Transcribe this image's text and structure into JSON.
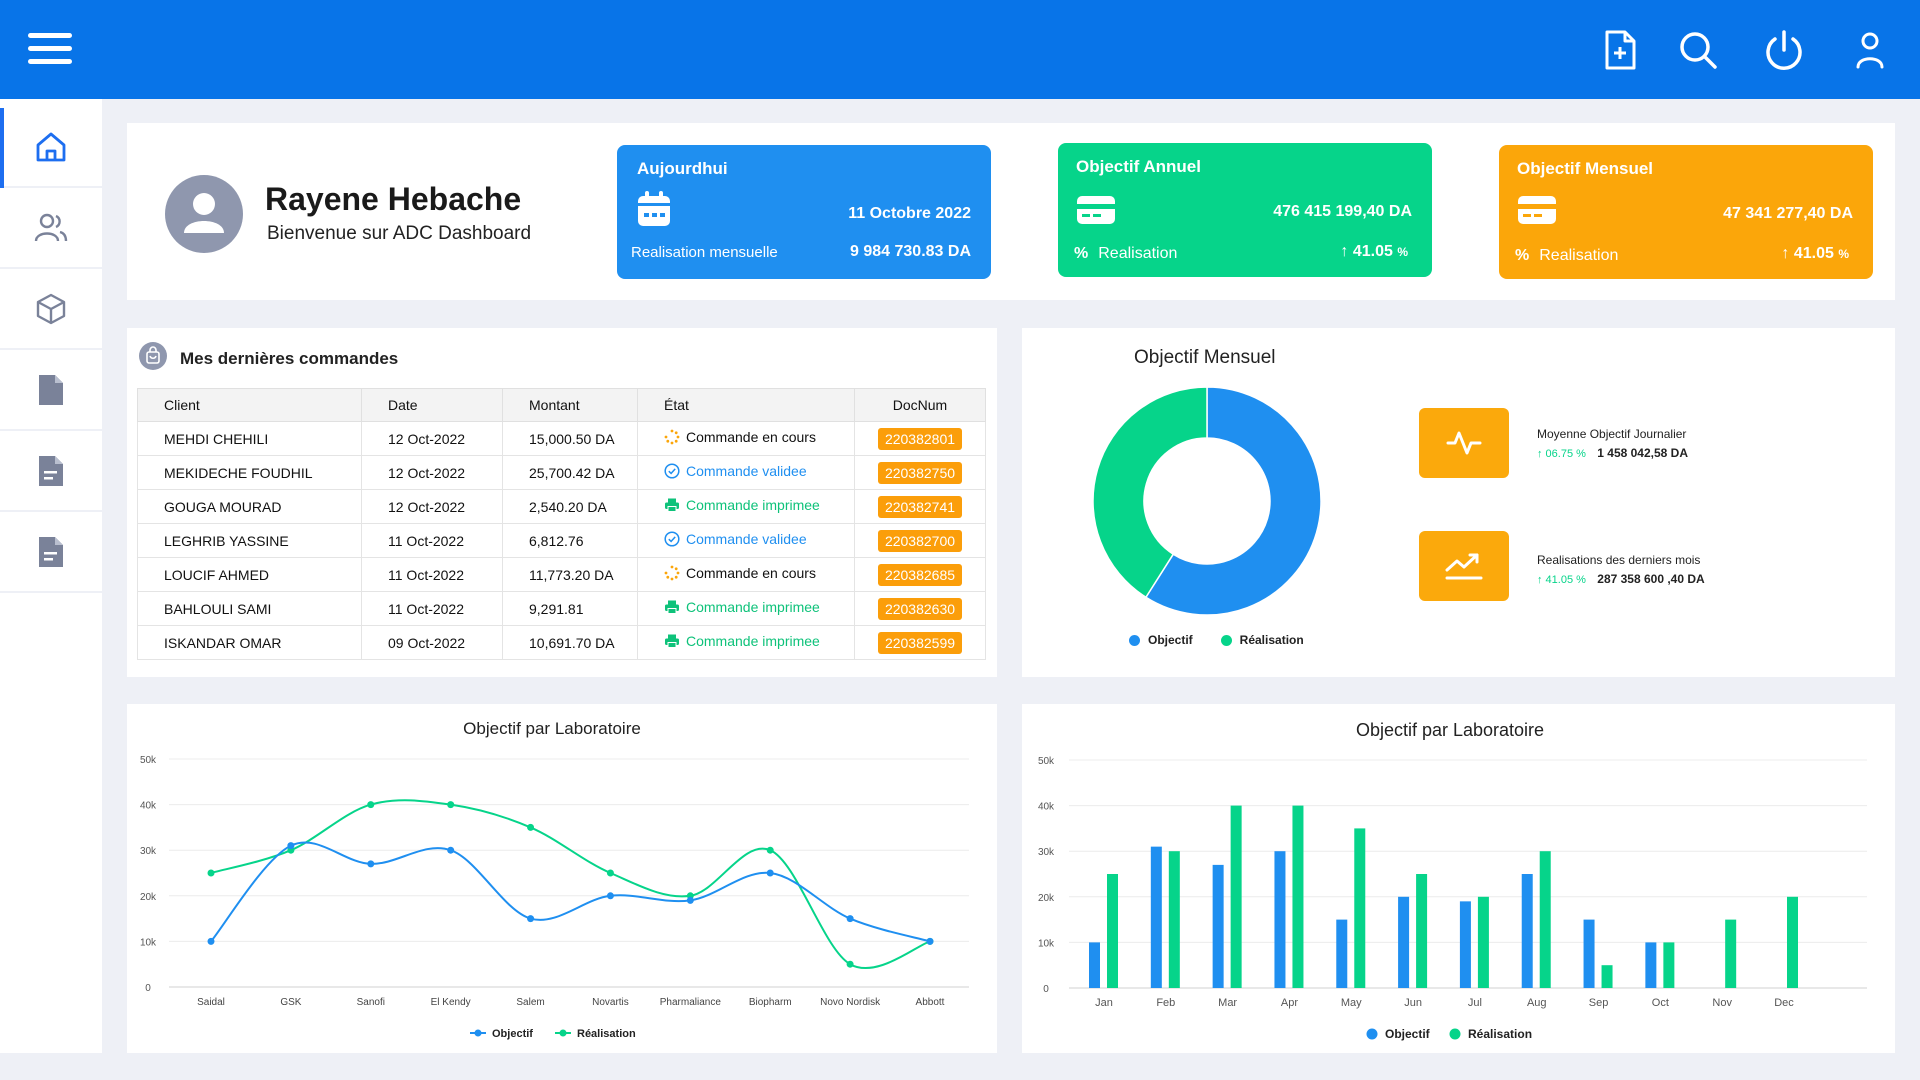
{
  "profile": {
    "name": "Rayene Hebache",
    "welcome": "Bienvenue sur ADC Dashboard"
  },
  "kpis": [
    {
      "title": "Aujourdhui",
      "value": "11 Octobre 2022",
      "sub_label": "Realisation mensuelle",
      "sub_value": "9 984 730.83 DA",
      "color": "#1f8ff0"
    },
    {
      "title": "Objectif Annuel",
      "value": "476 415 199,40 DA",
      "pct_label": "Realisation",
      "pct_value": "41.05",
      "color": "#06d48a"
    },
    {
      "title": "Objectif Mensuel",
      "value": "47 341 277,40 DA",
      "pct_label": "Realisation",
      "pct_value": "41.05",
      "color": "#fba60a"
    }
  ],
  "orders": {
    "title": "Mes dernières commandes",
    "columns": [
      "Client",
      "Date",
      "Montant",
      "État",
      "DocNum"
    ],
    "rows": [
      {
        "client": "MEHDI CHEHILI",
        "date": "12 Oct-2022",
        "montant": "15,000.50 DA",
        "etat": "Commande en cours",
        "status": "encours",
        "doc": "220382801"
      },
      {
        "client": "MEKIDECHE FOUDHIL",
        "date": "12 Oct-2022",
        "montant": "25,700.42 DA",
        "etat": "Commande validee",
        "status": "validee",
        "doc": "220382750"
      },
      {
        "client": "GOUGA MOURAD",
        "date": "12 Oct-2022",
        "montant": "2,540.20 DA",
        "etat": "Commande imprimee",
        "status": "imprimee",
        "doc": "220382741"
      },
      {
        "client": "LEGHRIB YASSINE",
        "date": "11 Oct-2022",
        "montant": "6,812.76",
        "etat": "Commande validee",
        "status": "validee",
        "doc": "220382700"
      },
      {
        "client": "LOUCIF AHMED",
        "date": "11 Oct-2022",
        "montant": "11,773.20 DA",
        "etat": "Commande en cours",
        "status": "encours",
        "doc": "220382685"
      },
      {
        "client": "BAHLOULI SAMI",
        "date": "11 Oct-2022",
        "montant": "9,291.81",
        "etat": "Commande imprimee",
        "status": "imprimee",
        "doc": "220382630"
      },
      {
        "client": "ISKANDAR OMAR",
        "date": "09 Oct-2022",
        "montant": "10,691.70 DA",
        "etat": "Commande imprimee",
        "status": "imprimee",
        "doc": "220382599"
      }
    ]
  },
  "donut_panel": {
    "title": "Objectif Mensuel",
    "legend": [
      "Objectif",
      "Réalisation"
    ],
    "stats": [
      {
        "label": "Moyenne Objectif Journalier",
        "pct": "↑ 06.75 %",
        "value": "1 458 042,58 DA"
      },
      {
        "label": "Realisations des derniers mois",
        "pct": "↑ 41.05 %",
        "value": "287 358 600 ,40 DA"
      }
    ]
  },
  "colors": {
    "primary": "#0874e8",
    "blue": "#1f8ff0",
    "green": "#06d48a",
    "orange": "#fba60a"
  },
  "chart_data": [
    {
      "type": "pie",
      "title": "Objectif Mensuel",
      "categories": [
        "Objectif",
        "Réalisation"
      ],
      "values": [
        59,
        41
      ]
    },
    {
      "type": "line",
      "title": "Objectif par Laboratoire",
      "categories": [
        "Saidal",
        "GSK",
        "Sanofi",
        "El Kendy",
        "Salem",
        "Novartis",
        "Pharmaliance",
        "Biopharm",
        "Novo Nordisk",
        "Abbott"
      ],
      "series": [
        {
          "name": "Objectif",
          "values": [
            10000,
            31000,
            27000,
            30000,
            15000,
            20000,
            19000,
            25000,
            15000,
            10000
          ]
        },
        {
          "name": "Réalisation",
          "values": [
            25000,
            30000,
            40000,
            40000,
            35000,
            25000,
            20000,
            30000,
            5000,
            10000
          ]
        }
      ],
      "yticks": [
        "0",
        "10k",
        "20k",
        "30k",
        "40k",
        "50k"
      ],
      "ylim": [
        0,
        50000
      ],
      "legend": "bottom"
    },
    {
      "type": "bar",
      "title": "Objectif par Laboratoire",
      "categories": [
        "Jan",
        "Feb",
        "Mar",
        "Apr",
        "May",
        "Jun",
        "Jul",
        "Aug",
        "Sep",
        "Oct",
        "Nov",
        "Dec"
      ],
      "series": [
        {
          "name": "Objectif",
          "values": [
            10000,
            31000,
            27000,
            30000,
            15000,
            20000,
            19000,
            25000,
            15000,
            10000,
            0,
            0
          ]
        },
        {
          "name": "Réalisation",
          "values": [
            25000,
            30000,
            40000,
            40000,
            35000,
            25000,
            20000,
            30000,
            5000,
            10000,
            15000,
            20000
          ]
        }
      ],
      "yticks": [
        "0",
        "10k",
        "20k",
        "30k",
        "40k",
        "50k"
      ],
      "ylim": [
        0,
        50000
      ],
      "legend": "bottom"
    }
  ]
}
